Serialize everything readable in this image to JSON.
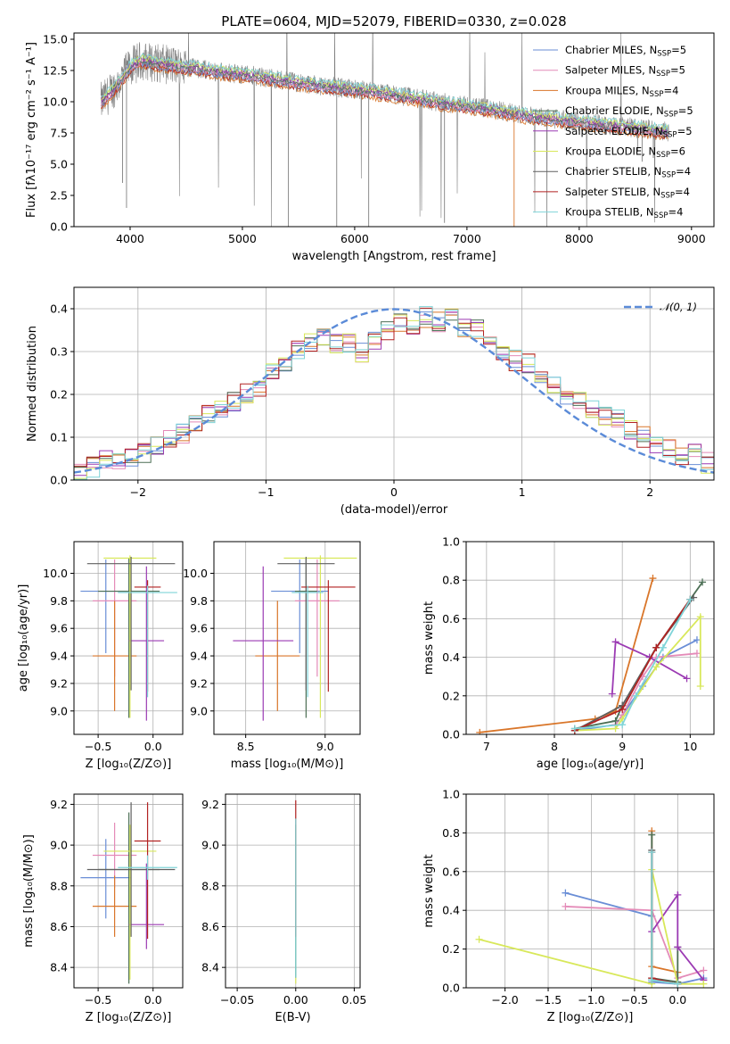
{
  "colors": {
    "Chabrier MILES": "#6a8ed6",
    "Salpeter MILES": "#e48bb8",
    "Kroupa MILES": "#d9762a",
    "Chabrier ELODIE": "#4c6f55",
    "Salpeter ELODIE": "#9b3ab3",
    "Kroupa ELODIE": "#d8e85a",
    "Chabrier STELIB": "#606060",
    "Salpeter STELIB": "#b22222",
    "Kroupa STELIB": "#7fd4d8",
    "data": "#808080",
    "normal": "#5b8bd8"
  },
  "chart_data": [
    {
      "id": "spectrum",
      "type": "line",
      "title": "PLATE=0604, MJD=52079, FIBERID=0330, z=0.028",
      "xlabel": "wavelength [Angstrom, rest frame]",
      "ylabel": "Flux [fλ10⁻¹⁷ erg cm⁻² s⁻¹ A⁻¹]",
      "xlim": [
        3500,
        9200
      ],
      "ylim": [
        0,
        15.5
      ],
      "xticks": [
        4000,
        5000,
        6000,
        7000,
        8000,
        9000
      ],
      "yticks": [
        0.0,
        2.5,
        5.0,
        7.5,
        10.0,
        12.5,
        15.0
      ],
      "grid": false,
      "legend": "top-right",
      "legend_entries": [
        "Chabrier MILES, N_SSP=5",
        "Salpeter MILES, N_SSP=5",
        "Kroupa MILES, N_SSP=4",
        "Chabrier ELODIE, N_SSP=5",
        "Salpeter ELODIE, N_SSP=5",
        "Kroupa ELODIE, N_SSP=6",
        "Chabrier STELIB, N_SSP=4",
        "Salpeter STELIB, N_SSP=4",
        "Kroupa STELIB, N_SSP=4"
      ],
      "data_spectrum_envelope": {
        "x": [
          3750,
          3900,
          4000,
          4100,
          4300,
          4500,
          4800,
          5000,
          5300,
          5600,
          6000,
          6400,
          6800,
          7200,
          7600,
          8000,
          8400,
          8800
        ],
        "y": [
          10.0,
          11.5,
          12.8,
          13.3,
          13.0,
          12.8,
          12.4,
          12.2,
          11.8,
          11.4,
          11.0,
          10.5,
          9.9,
          9.4,
          8.8,
          8.4,
          8.0,
          7.6
        ]
      }
    },
    {
      "id": "residuals",
      "type": "histogram",
      "xlabel": "(data-model)/error",
      "ylabel": "Normed distribution",
      "xlim": [
        -2.5,
        2.5
      ],
      "ylim": [
        0,
        0.45
      ],
      "xticks": [
        -2,
        -1,
        0,
        1,
        2
      ],
      "yticks": [
        0.0,
        0.1,
        0.2,
        0.3,
        0.4
      ],
      "grid": true,
      "legend": "top-right",
      "legend_entries": [
        "𝒩(0, 1)"
      ],
      "bin_width": 0.1,
      "approx_density": [
        0.02,
        0.03,
        0.05,
        0.05,
        0.05,
        0.06,
        0.08,
        0.1,
        0.11,
        0.13,
        0.15,
        0.17,
        0.18,
        0.2,
        0.22,
        0.25,
        0.27,
        0.3,
        0.32,
        0.33,
        0.32,
        0.32,
        0.3,
        0.33,
        0.35,
        0.37,
        0.36,
        0.38,
        0.37,
        0.38,
        0.36,
        0.35,
        0.33,
        0.3,
        0.28,
        0.27,
        0.25,
        0.22,
        0.2,
        0.19,
        0.17,
        0.15,
        0.14,
        0.12,
        0.1,
        0.08,
        0.07,
        0.06,
        0.06,
        0.04
      ]
    },
    {
      "id": "age-vs-Z",
      "type": "errorbar",
      "xlabel": "Z [log₁₀(Z/Z⊙)]",
      "ylabel": "age  [log₁₀(age/yr)]",
      "xlim": [
        -0.72,
        0.27
      ],
      "ylim": [
        8.83,
        10.23
      ],
      "xticks": [
        -0.5,
        0.0
      ],
      "yticks": [
        9.0,
        9.2,
        9.4,
        9.6,
        9.8,
        10.0
      ],
      "grid": true,
      "points": [
        {
          "model": "Chabrier MILES",
          "x": -0.43,
          "xerr": 0.23,
          "y": 9.87,
          "yerr": [
            0.45,
            0.23
          ]
        },
        {
          "model": "Salpeter MILES",
          "x": -0.35,
          "xerr": 0.2,
          "y": 9.8,
          "yerr": [
            0.55,
            0.3
          ]
        },
        {
          "model": "Kroupa MILES",
          "x": -0.35,
          "xerr": 0.2,
          "y": 9.4,
          "yerr": [
            0.4,
            0.4
          ]
        },
        {
          "model": "Chabrier ELODIE",
          "x": -0.22,
          "xerr": 0.28,
          "y": 9.87,
          "yerr": [
            0.92,
            0.24
          ]
        },
        {
          "model": "Salpeter ELODIE",
          "x": -0.06,
          "xerr": 0.16,
          "y": 9.51,
          "yerr": [
            0.58,
            0.54
          ]
        },
        {
          "model": "Kroupa ELODIE",
          "x": -0.21,
          "xerr": 0.24,
          "y": 10.11,
          "yerr": [
            1.16,
            0.02
          ]
        },
        {
          "model": "Chabrier STELIB",
          "x": -0.2,
          "xerr": 0.4,
          "y": 10.07,
          "yerr": [
            0.92,
            0.05
          ]
        },
        {
          "model": "Salpeter STELIB",
          "x": -0.05,
          "xerr": 0.12,
          "y": 9.9,
          "yerr": [
            0.76,
            0.05
          ]
        },
        {
          "model": "Kroupa STELIB",
          "x": -0.05,
          "xerr": 0.27,
          "y": 9.86,
          "yerr": [
            0.76,
            0.05
          ]
        }
      ]
    },
    {
      "id": "age-vs-mass",
      "type": "errorbar",
      "xlabel": "mass [log₁₀(M/M⊙)]",
      "ylabel": "",
      "xlim": [
        8.3,
        9.22
      ],
      "ylim": [
        8.83,
        10.23
      ],
      "xticks": [
        8.5,
        9.0
      ],
      "yticks": [
        9.0,
        9.2,
        9.4,
        9.6,
        9.8,
        10.0
      ],
      "grid": true,
      "points": [
        {
          "model": "Chabrier MILES",
          "x": 8.84,
          "xerr": 0.18,
          "y": 9.87,
          "yerr": [
            0.45,
            0.23
          ]
        },
        {
          "model": "Salpeter MILES",
          "x": 8.95,
          "xerr": 0.14,
          "y": 9.8,
          "yerr": [
            0.55,
            0.3
          ]
        },
        {
          "model": "Kroupa MILES",
          "x": 8.7,
          "xerr": 0.14,
          "y": 9.4,
          "yerr": [
            0.4,
            0.4
          ]
        },
        {
          "model": "Chabrier ELODIE",
          "x": 8.88,
          "xerr": 0.07,
          "y": 9.87,
          "yerr": [
            0.92,
            0.24
          ]
        },
        {
          "model": "Salpeter ELODIE",
          "x": 8.61,
          "xerr": 0.19,
          "y": 9.51,
          "yerr": [
            0.58,
            0.54
          ]
        },
        {
          "model": "Kroupa ELODIE",
          "x": 8.97,
          "xerr": 0.23,
          "y": 10.11,
          "yerr": [
            1.16,
            0.02
          ]
        },
        {
          "model": "Chabrier STELIB",
          "x": 8.88,
          "xerr": 0.18,
          "y": 10.07,
          "yerr": [
            0.92,
            0.05
          ]
        },
        {
          "model": "Salpeter STELIB",
          "x": 9.02,
          "xerr": 0.17,
          "y": 9.9,
          "yerr": [
            0.76,
            0.05
          ]
        },
        {
          "model": "Kroupa STELIB",
          "x": 8.89,
          "xerr": 0.1,
          "y": 9.86,
          "yerr": [
            0.76,
            0.05
          ]
        }
      ]
    },
    {
      "id": "weight-vs-age",
      "type": "line",
      "xlabel": "age  [log₁₀(age/yr)]",
      "ylabel": "mass weight",
      "xlim": [
        6.7,
        10.35
      ],
      "ylim": [
        0,
        1.0
      ],
      "xticks": [
        7,
        8,
        9,
        10
      ],
      "yticks": [
        0.0,
        0.2,
        0.4,
        0.6,
        0.8,
        1.0
      ],
      "grid": true,
      "series": [
        {
          "model": "Chabrier MILES",
          "x": [
            8.3,
            8.9,
            9.0,
            9.3,
            9.6,
            10.1
          ],
          "y": [
            0.02,
            0.05,
            0.1,
            0.25,
            0.4,
            0.49
          ]
        },
        {
          "model": "Salpeter MILES",
          "x": [
            8.9,
            9.0,
            9.3,
            9.5,
            10.1
          ],
          "y": [
            0.05,
            0.1,
            0.3,
            0.4,
            0.42
          ]
        },
        {
          "model": "Kroupa MILES",
          "x": [
            6.9,
            8.6,
            8.9,
            9.45
          ],
          "y": [
            0.01,
            0.08,
            0.12,
            0.81
          ]
        },
        {
          "model": "Chabrier ELODIE",
          "x": [
            8.3,
            8.9,
            9.0,
            9.5,
            10.0,
            10.18
          ],
          "y": [
            0.03,
            0.07,
            0.15,
            0.45,
            0.7,
            0.79
          ]
        },
        {
          "model": "Salpeter ELODIE",
          "x": [
            8.85,
            8.9,
            9.4,
            9.95
          ],
          "y": [
            0.21,
            0.48,
            0.4,
            0.29
          ]
        },
        {
          "model": "Kroupa ELODIE",
          "x": [
            8.3,
            8.9,
            9.0,
            9.5,
            10.15,
            10.15
          ],
          "y": [
            0.02,
            0.03,
            0.08,
            0.35,
            0.61,
            0.25
          ]
        },
        {
          "model": "Chabrier STELIB",
          "x": [
            8.3,
            9.0,
            9.5,
            10.05
          ],
          "y": [
            0.02,
            0.15,
            0.45,
            0.71
          ]
        },
        {
          "model": "Salpeter STELIB",
          "x": [
            8.3,
            9.0,
            9.5,
            10.0
          ],
          "y": [
            0.02,
            0.13,
            0.45,
            0.7
          ]
        },
        {
          "model": "Kroupa STELIB",
          "x": [
            8.3,
            9.0,
            9.2,
            9.6,
            10.0
          ],
          "y": [
            0.03,
            0.05,
            0.2,
            0.45,
            0.7
          ]
        }
      ]
    },
    {
      "id": "mass-vs-Z",
      "type": "errorbar",
      "xlabel": "Z [log₁₀(Z/Z⊙)]",
      "ylabel": "mass [log₁₀(M/M⊙)]",
      "xlim": [
        -0.72,
        0.27
      ],
      "ylim": [
        8.3,
        9.25
      ],
      "xticks": [
        -0.5,
        0.0
      ],
      "yticks": [
        8.4,
        8.6,
        8.8,
        9.0,
        9.2
      ],
      "grid": true,
      "points": [
        {
          "model": "Chabrier MILES",
          "x": -0.43,
          "xerr": 0.23,
          "y": 8.84,
          "yerr": [
            0.2,
            0.19
          ]
        },
        {
          "model": "Salpeter MILES",
          "x": -0.35,
          "xerr": 0.2,
          "y": 8.95,
          "yerr": [
            0.16,
            0.16
          ]
        },
        {
          "model": "Kroupa MILES",
          "x": -0.35,
          "xerr": 0.2,
          "y": 8.7,
          "yerr": [
            0.15,
            0.15
          ]
        },
        {
          "model": "Chabrier ELODIE",
          "x": -0.22,
          "xerr": 0.28,
          "y": 8.88,
          "yerr": [
            0.56,
            0.28
          ]
        },
        {
          "model": "Salpeter ELODIE",
          "x": -0.06,
          "xerr": 0.16,
          "y": 8.61,
          "yerr": [
            0.12,
            0.3
          ]
        },
        {
          "model": "Kroupa ELODIE",
          "x": -0.21,
          "xerr": 0.24,
          "y": 8.97,
          "yerr": [
            0.63,
            0.13
          ]
        },
        {
          "model": "Chabrier STELIB",
          "x": -0.2,
          "xerr": 0.4,
          "y": 8.88,
          "yerr": [
            0.33,
            0.33
          ]
        },
        {
          "model": "Salpeter STELIB",
          "x": -0.05,
          "xerr": 0.12,
          "y": 9.02,
          "yerr": [
            0.48,
            0.19
          ]
        },
        {
          "model": "Kroupa STELIB",
          "x": -0.05,
          "xerr": 0.27,
          "y": 8.89,
          "yerr": [
            0.06,
            0.06
          ]
        }
      ]
    },
    {
      "id": "mass-vs-ebv",
      "type": "errorbar",
      "xlabel": "E(B-V)",
      "ylabel": "",
      "xlim": [
        -0.06,
        0.055
      ],
      "ylim": [
        8.3,
        9.25
      ],
      "xticks": [
        -0.05,
        0.0,
        0.05
      ],
      "yticks": [
        8.4,
        8.6,
        8.8,
        9.0,
        9.2
      ],
      "grid": true,
      "points": [
        {
          "model": "Kroupa ELODIE",
          "x": 0.0,
          "y": 8.55,
          "yerr": [
            0.23,
            0.55
          ]
        },
        {
          "model": "Chabrier ELODIE",
          "x": 0.0,
          "y": 8.55,
          "yerr": [
            0.2,
            0.55
          ]
        },
        {
          "model": "Salpeter STELIB",
          "x": 0.0,
          "y": 8.95,
          "yerr": [
            0.4,
            0.27
          ]
        },
        {
          "model": "Kroupa STELIB",
          "x": 0.0,
          "y": 8.85,
          "yerr": [
            0.5,
            0.28
          ]
        }
      ]
    },
    {
      "id": "weight-vs-Z",
      "type": "line",
      "xlabel": "Z [log₁₀(Z/Z⊙)]",
      "ylabel": "mass weight",
      "xlim": [
        -2.45,
        0.42
      ],
      "ylim": [
        0,
        1.0
      ],
      "xticks": [
        -2.0,
        -1.5,
        -1.0,
        -0.5,
        0.0
      ],
      "yticks": [
        0.0,
        0.2,
        0.4,
        0.6,
        0.8,
        1.0
      ],
      "grid": true,
      "series": [
        {
          "model": "Chabrier MILES",
          "x": [
            -1.3,
            -0.3,
            -0.3,
            0.0,
            0.3
          ],
          "y": [
            0.49,
            0.37,
            0.03,
            0.02,
            0.05
          ]
        },
        {
          "model": "Salpeter MILES",
          "x": [
            -1.3,
            -0.3,
            0.0,
            0.3
          ],
          "y": [
            0.42,
            0.4,
            0.05,
            0.09
          ]
        },
        {
          "model": "Kroupa MILES",
          "x": [
            -0.3,
            -0.3,
            0.0
          ],
          "y": [
            0.81,
            0.11,
            0.08
          ]
        },
        {
          "model": "Chabrier ELODIE",
          "x": [
            -0.3,
            -0.3,
            0.0,
            0.0
          ],
          "y": [
            0.79,
            0.05,
            0.03,
            0.21
          ]
        },
        {
          "model": "Salpeter ELODIE",
          "x": [
            -0.3,
            0.0,
            0.0,
            0.3
          ],
          "y": [
            0.29,
            0.48,
            0.21,
            0.04
          ]
        },
        {
          "model": "Kroupa ELODIE",
          "x": [
            -2.3,
            -0.3,
            -0.3,
            0.0,
            0.3
          ],
          "y": [
            0.25,
            0.02,
            0.61,
            0.02,
            0.02
          ]
        },
        {
          "model": "Chabrier STELIB",
          "x": [
            -0.3,
            -0.3,
            0.0
          ],
          "y": [
            0.71,
            0.04,
            0.02
          ]
        },
        {
          "model": "Salpeter STELIB",
          "x": [
            -0.3,
            -0.3,
            0.0
          ],
          "y": [
            0.7,
            0.05,
            0.02
          ]
        },
        {
          "model": "Kroupa STELIB",
          "x": [
            -0.3,
            -0.3,
            0.0
          ],
          "y": [
            0.7,
            0.04,
            0.02
          ]
        }
      ]
    }
  ]
}
